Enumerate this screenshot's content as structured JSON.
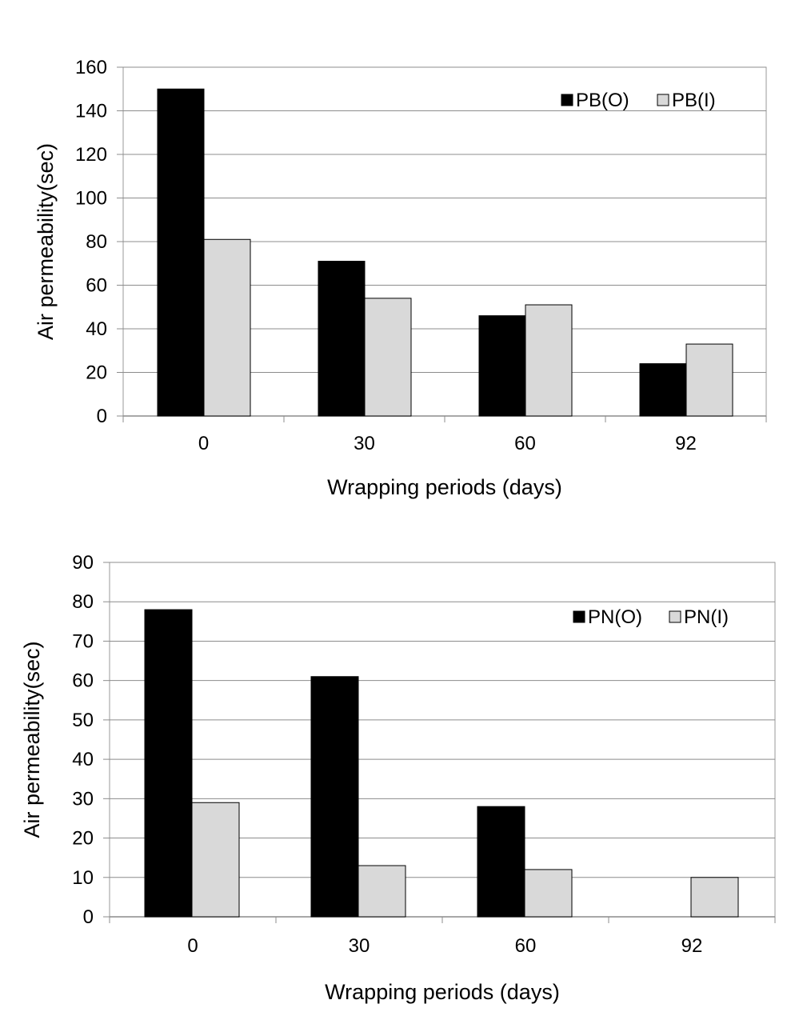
{
  "chart_data": [
    {
      "type": "bar",
      "categories": [
        "0",
        "30",
        "60",
        "92"
      ],
      "series": [
        {
          "name": "PB(O)",
          "values": [
            150,
            71,
            46,
            24
          ]
        },
        {
          "name": "PB(I)",
          "values": [
            81,
            54,
            51,
            33
          ]
        }
      ],
      "xlabel": "Wrapping periods (days)",
      "ylabel": "Air permeability(sec)",
      "ylim": [
        0,
        160
      ],
      "yticks": [
        "0",
        "20",
        "40",
        "60",
        "80",
        "100",
        "120",
        "140",
        "160"
      ],
      "grid": true,
      "legend": "top-right",
      "colors": [
        "#000000",
        "#d9d9d9"
      ]
    },
    {
      "type": "bar",
      "categories": [
        "0",
        "30",
        "60",
        "92"
      ],
      "series": [
        {
          "name": "PN(O)",
          "values": [
            78,
            61,
            28,
            0
          ]
        },
        {
          "name": "PN(I)",
          "values": [
            29,
            13,
            12,
            10
          ]
        }
      ],
      "xlabel": "Wrapping periods (days)",
      "ylabel": "Air permeability(sec)",
      "ylim": [
        0,
        90
      ],
      "yticks": [
        "0",
        "10",
        "20",
        "30",
        "40",
        "50",
        "60",
        "70",
        "80",
        "90"
      ],
      "grid": true,
      "legend": "top-right",
      "colors": [
        "#000000",
        "#d9d9d9"
      ]
    }
  ]
}
